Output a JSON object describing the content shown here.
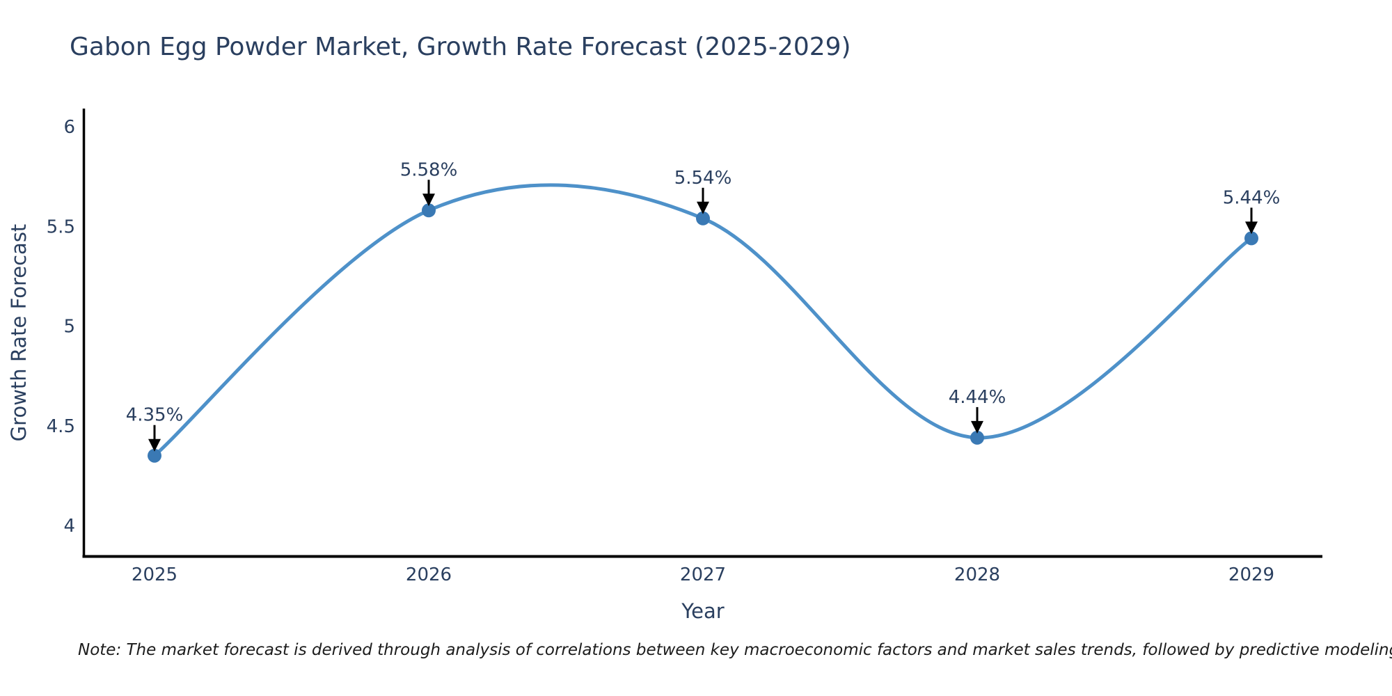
{
  "title": "Gabon Egg Powder Market, Growth Rate Forecast (2025-2029)",
  "note": "Note: The market forecast is derived through analysis of correlations between key macroeconomic factors and market sales trends, followed by predictive modeling to project future sales",
  "chart_data": {
    "type": "line",
    "title": "Gabon Egg Powder Market, Growth Rate Forecast (2025-2029)",
    "xlabel": "Year",
    "ylabel": "Growth Rate Forecast",
    "categories": [
      "2025",
      "2026",
      "2027",
      "2028",
      "2029"
    ],
    "values": [
      4.35,
      5.58,
      5.54,
      4.44,
      5.44
    ],
    "point_labels": [
      "4.35%",
      "5.58%",
      "5.54%",
      "4.44%",
      "5.44%"
    ],
    "ytick_labels": [
      "6",
      "5.5",
      "5",
      "4.5",
      "4"
    ],
    "ytick_values": [
      6,
      5.5,
      5,
      4.5,
      4
    ],
    "ylim": [
      3.85,
      6.05
    ],
    "line_shape": "spline",
    "grid": false,
    "legend": "none",
    "colors": {
      "line": "#4e91c9",
      "marker": "#3a79b4",
      "axis": "#000000",
      "text": "#2a3f5f",
      "arrow": "#000000"
    }
  }
}
